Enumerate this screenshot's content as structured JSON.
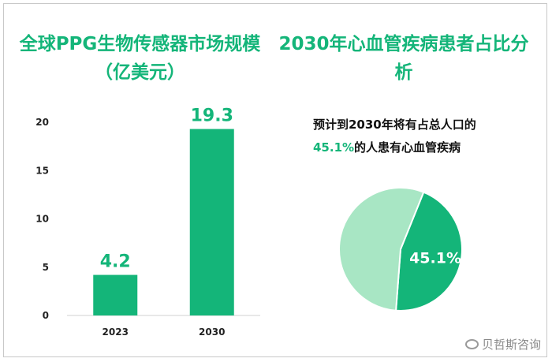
{
  "chart_data": [
    {
      "type": "bar",
      "title": "全球PPG生物传感器市场规模（亿美元）",
      "categories": [
        "2023",
        "2030"
      ],
      "values": [
        4.2,
        19.3
      ],
      "data_labels": [
        "4.2",
        "19.3"
      ],
      "ylim": [
        0,
        20
      ],
      "yticks": [
        0,
        5,
        10,
        15,
        20
      ],
      "grid": false,
      "colors": {
        "bar": "#14b579"
      }
    },
    {
      "type": "pie",
      "title": "2030年心血管疾病患者占比分析",
      "annotation_line1": "预计到2030年将有占总人口的",
      "annotation_highlight": "45.1%",
      "annotation_line2_rest": "的人患有心血管疾病",
      "slices": [
        {
          "value": 45.1,
          "label": "45.1%",
          "color": "#14b579"
        },
        {
          "value": 54.9,
          "label": "",
          "color": "#a8e6c4"
        }
      ]
    }
  ],
  "watermark": "贝哲斯咨询"
}
